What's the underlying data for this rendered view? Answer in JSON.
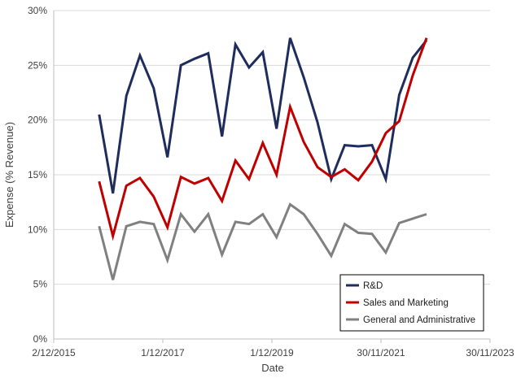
{
  "chart_data": {
    "type": "line",
    "xlabel": "Date",
    "ylabel": "Expense (% Revenue)",
    "x_ticks": [
      "2/12/2015",
      "1/12/2017",
      "1/12/2019",
      "30/11/2021",
      "30/11/2023"
    ],
    "y_ticks": [
      "0%",
      "5%",
      "10%",
      "15%",
      "20%",
      "25%",
      "30%"
    ],
    "ylim": [
      0,
      30
    ],
    "xlim": [
      "2015-12-02",
      "2023-11-30"
    ],
    "grid": "horizontal",
    "legend_position": "bottom-right",
    "x": [
      "2016-10-01",
      "2017-01-01",
      "2017-04-01",
      "2017-07-01",
      "2017-10-01",
      "2018-01-01",
      "2018-04-01",
      "2018-07-01",
      "2018-10-01",
      "2019-01-01",
      "2019-04-01",
      "2019-07-01",
      "2019-10-01",
      "2020-01-01",
      "2020-04-01",
      "2020-07-01",
      "2020-10-01",
      "2021-01-01",
      "2021-04-01",
      "2021-07-01",
      "2021-10-01",
      "2022-01-01",
      "2022-04-01",
      "2022-07-01",
      "2022-10-01"
    ],
    "series": [
      {
        "name": "R&D",
        "color": "#1f2d5c",
        "values": [
          20.5,
          13.3,
          22.2,
          25.9,
          22.9,
          16.6,
          25.0,
          25.6,
          26.1,
          18.5,
          26.9,
          24.8,
          26.2,
          19.2,
          27.5,
          23.9,
          19.8,
          14.6,
          17.7,
          17.6,
          17.7,
          14.6,
          22.3,
          25.7,
          27.3
        ]
      },
      {
        "name": "Sales and Marketing",
        "color": "#c00000",
        "values": [
          14.4,
          9.4,
          14.0,
          14.7,
          13.0,
          10.2,
          14.8,
          14.2,
          14.7,
          12.6,
          16.3,
          14.6,
          17.9,
          15.0,
          21.2,
          18.0,
          15.7,
          14.8,
          15.5,
          14.5,
          16.2,
          18.8,
          19.9,
          24.1,
          27.5
        ]
      },
      {
        "name": "General and Administrative",
        "color": "#808080",
        "values": [
          10.3,
          5.4,
          10.3,
          10.7,
          10.5,
          7.2,
          11.4,
          9.8,
          11.4,
          7.7,
          10.7,
          10.5,
          11.4,
          9.3,
          12.3,
          11.4,
          9.6,
          7.6,
          10.5,
          9.7,
          9.6,
          7.9,
          10.6,
          11.0,
          11.4
        ]
      }
    ]
  }
}
